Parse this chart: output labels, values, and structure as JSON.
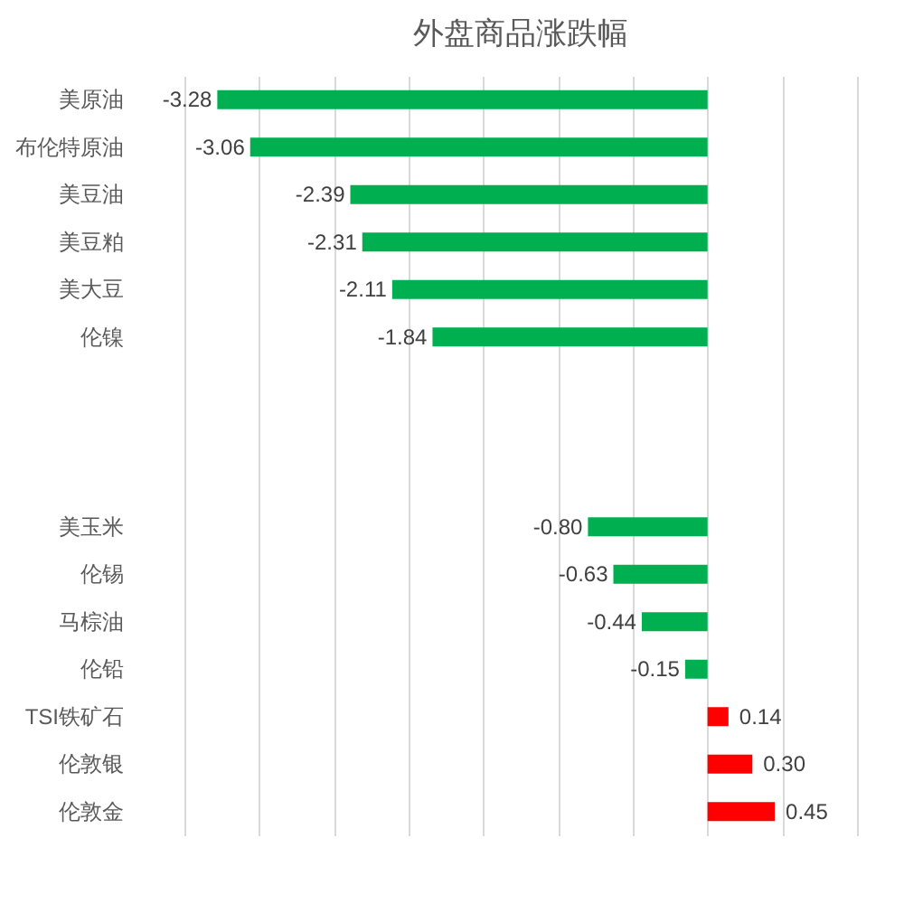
{
  "chart_data": {
    "type": "bar",
    "orientation": "horizontal",
    "title": "外盘商品涨跌幅",
    "categories": [
      "美原油",
      "布伦特原油",
      "美豆油",
      "美豆粕",
      "美大豆",
      "伦镍",
      null,
      null,
      null,
      "美玉米",
      "伦锡",
      "马棕油",
      "伦铅",
      "TSI铁矿石",
      "伦敦银",
      "伦敦金"
    ],
    "values": [
      -3.28,
      -3.06,
      -2.39,
      -2.31,
      -2.11,
      -1.84,
      null,
      null,
      null,
      -0.8,
      -0.63,
      -0.44,
      -0.15,
      0.14,
      0.3,
      0.45
    ],
    "colors": [
      "#00b050",
      "#00b050",
      "#00b050",
      "#00b050",
      "#00b050",
      "#00b050",
      "#00b050",
      "#00b050",
      "#00b050",
      "#00b050",
      "#00b050",
      "#00b050",
      "#00b050",
      "#ff0000",
      "#ff0000",
      "#ff0000"
    ],
    "xlim": [
      -3.5,
      1
    ],
    "xticks": [
      {
        "value": -3.5,
        "label": null
      },
      {
        "value": -3,
        "label": null
      },
      {
        "value": -2.5,
        "label": null
      },
      {
        "value": -2,
        "label": null
      },
      {
        "value": -1.5,
        "label": null
      },
      {
        "value": -1,
        "label": null
      },
      {
        "value": -0.5,
        "label": null
      },
      {
        "value": 0,
        "label": null
      },
      {
        "value": 0.5,
        "label": null
      },
      {
        "value": 1,
        "label": null
      }
    ],
    "value_labels": [
      "-3.28",
      "-3.06",
      "-2.39",
      "-2.31",
      "-2.11",
      "-1.84",
      null,
      null,
      null,
      "-0.80",
      "-0.63",
      "-0.44",
      "-0.15",
      "0.14",
      "0.30",
      "0.45"
    ],
    "grid": "x",
    "tick_labels": "y"
  }
}
